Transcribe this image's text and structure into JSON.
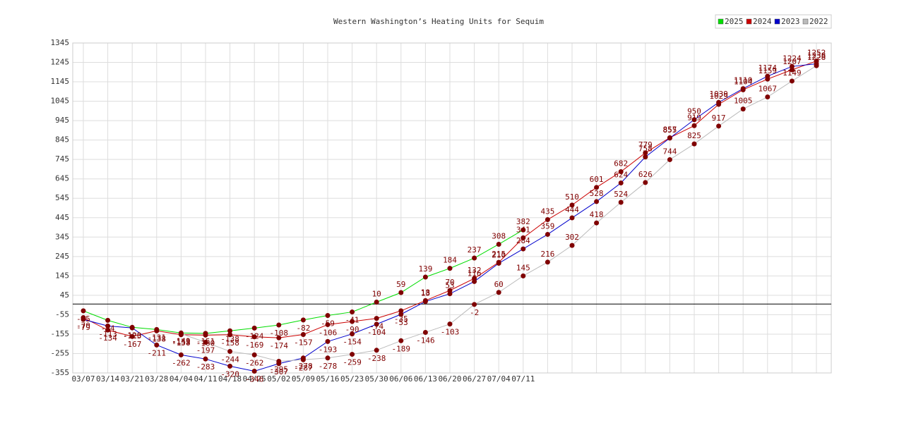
{
  "chart_data": {
    "type": "line",
    "title": "Western Washington’s Heating Units for Sequim",
    "categories": [
      "03/07",
      "03/14",
      "03/21",
      "03/28",
      "04/04",
      "04/11",
      "04/18",
      "04/25",
      "05/02",
      "05/09",
      "05/16",
      "05/23",
      "05/30",
      "06/06",
      "06/13",
      "06/20",
      "06/27",
      "07/04",
      "07/11",
      null,
      null,
      null,
      null,
      null,
      null,
      null,
      null,
      null,
      null,
      null,
      null
    ],
    "series": [
      {
        "name": "2025",
        "color": "#00dd00",
        "values": [
          -35,
          -84,
          -120,
          -131,
          -149,
          -151,
          -138,
          -124,
          -108,
          -82,
          -59,
          -41,
          10,
          59,
          139,
          184,
          237,
          308,
          382,
          null,
          null,
          null,
          null,
          null,
          null,
          null,
          null,
          null,
          null,
          null,
          null
        ]
      },
      {
        "name": "2024",
        "color": "#cc0000",
        "values": [
          -70,
          -134,
          -167,
          -138,
          -158,
          -160,
          -158,
          -169,
          -174,
          -157,
          -106,
          -90,
          -74,
          -35,
          18,
          70,
          132,
          215,
          341,
          435,
          510,
          601,
          682,
          779,
          857,
          919,
          1029,
          1104,
          1159,
          1207,
          1252
        ]
      },
      {
        "name": "2023",
        "color": "#0000cc",
        "values": [
          -79,
          -113,
          -123,
          -211,
          -262,
          -283,
          -320,
          -346,
          -307,
          -278,
          -193,
          -154,
          -104,
          -53,
          13,
          53,
          116,
          210,
          284,
          359,
          444,
          528,
          624,
          758,
          855,
          950,
          1039,
          1110,
          1174,
          1224,
          1238
        ]
      },
      {
        "name": "2022",
        "color": "#bbbbbb",
        "values": [
          null,
          null,
          null,
          null,
          -153,
          -197,
          -244,
          -262,
          -295,
          -287,
          -278,
          -259,
          -238,
          -189,
          -146,
          -103,
          -2,
          60,
          145,
          216,
          302,
          418,
          524,
          626,
          744,
          825,
          917,
          1005,
          1067,
          1149,
          1228
        ]
      }
    ],
    "marker_color": "#800000",
    "ylim": [
      -355,
      1345
    ],
    "yticks": [
      -355,
      -255,
      -155,
      -55,
      45,
      145,
      245,
      345,
      445,
      545,
      645,
      745,
      845,
      945,
      1045,
      1145,
      1245,
      1345
    ],
    "grid": true,
    "legend": "top-right"
  }
}
